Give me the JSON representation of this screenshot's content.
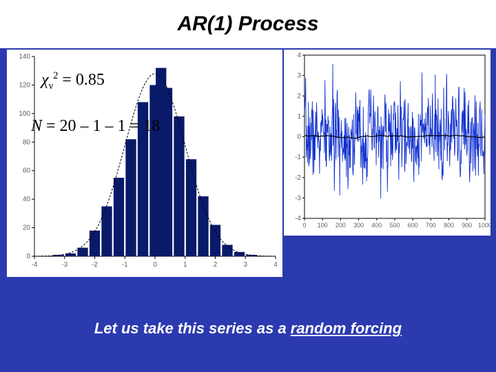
{
  "title": "AR(1) Process",
  "caption_lead": "Let us take this series as a ",
  "caption_underlined": "random forcing",
  "colors": {
    "slide_bg": "#2c3ab0",
    "panel_bg": "#ffffff",
    "bar_fill": "#0a1a6a",
    "gauss_line": "#000000",
    "series_line": "#1030d0",
    "baseline": "#000000",
    "tick_color": "#000000",
    "tick_label_color": "#606060"
  },
  "equations": {
    "chi2_label_prefix": "χ",
    "chi2_subscript": "ν",
    "chi2_superscript": "2",
    "chi2_value": "= 0.85",
    "N_label": "N",
    "N_expr": " = 20 – 1 – 1 = 18"
  },
  "histogram": {
    "type": "bar+line",
    "xlim": [
      -4,
      4
    ],
    "ylim": [
      0,
      140
    ],
    "xticks": [
      -4,
      -3,
      -2,
      -1,
      0,
      1,
      2,
      3,
      4
    ],
    "yticks": [
      0,
      20,
      40,
      60,
      80,
      100,
      120,
      140
    ],
    "bar_width": 0.35,
    "bars": [
      {
        "x": -3.2,
        "y": 1
      },
      {
        "x": -2.8,
        "y": 2
      },
      {
        "x": -2.4,
        "y": 6
      },
      {
        "x": -2.0,
        "y": 18
      },
      {
        "x": -1.6,
        "y": 35
      },
      {
        "x": -1.2,
        "y": 55
      },
      {
        "x": -0.8,
        "y": 82
      },
      {
        "x": -0.4,
        "y": 108
      },
      {
        "x": 0.0,
        "y": 120
      },
      {
        "x": 0.2,
        "y": 132
      },
      {
        "x": 0.4,
        "y": 118
      },
      {
        "x": 0.8,
        "y": 98
      },
      {
        "x": 1.2,
        "y": 68
      },
      {
        "x": 1.6,
        "y": 42
      },
      {
        "x": 2.0,
        "y": 22
      },
      {
        "x": 2.4,
        "y": 8
      },
      {
        "x": 2.8,
        "y": 3
      },
      {
        "x": 3.2,
        "y": 1
      }
    ],
    "gaussian_amp": 128,
    "gaussian_sigma": 1.0,
    "bar_color": "#0a1a6a",
    "line_color": "#000000"
  },
  "timeseries": {
    "type": "line",
    "xlim": [
      0,
      1000
    ],
    "ylim": [
      -4,
      4
    ],
    "xticks": [
      0,
      100,
      200,
      300,
      400,
      500,
      600,
      700,
      800,
      900,
      1000
    ],
    "yticks": [
      -4,
      -3,
      -2,
      -1,
      0,
      1,
      2,
      3,
      4
    ],
    "n_points": 600,
    "seed": 7,
    "line_color": "#1030d0",
    "baseline_color": "#000000"
  },
  "fonts": {
    "title_fontsize": 30,
    "caption_fontsize": 22,
    "tick_fontsize": 10,
    "eq_fontsize": 24
  }
}
